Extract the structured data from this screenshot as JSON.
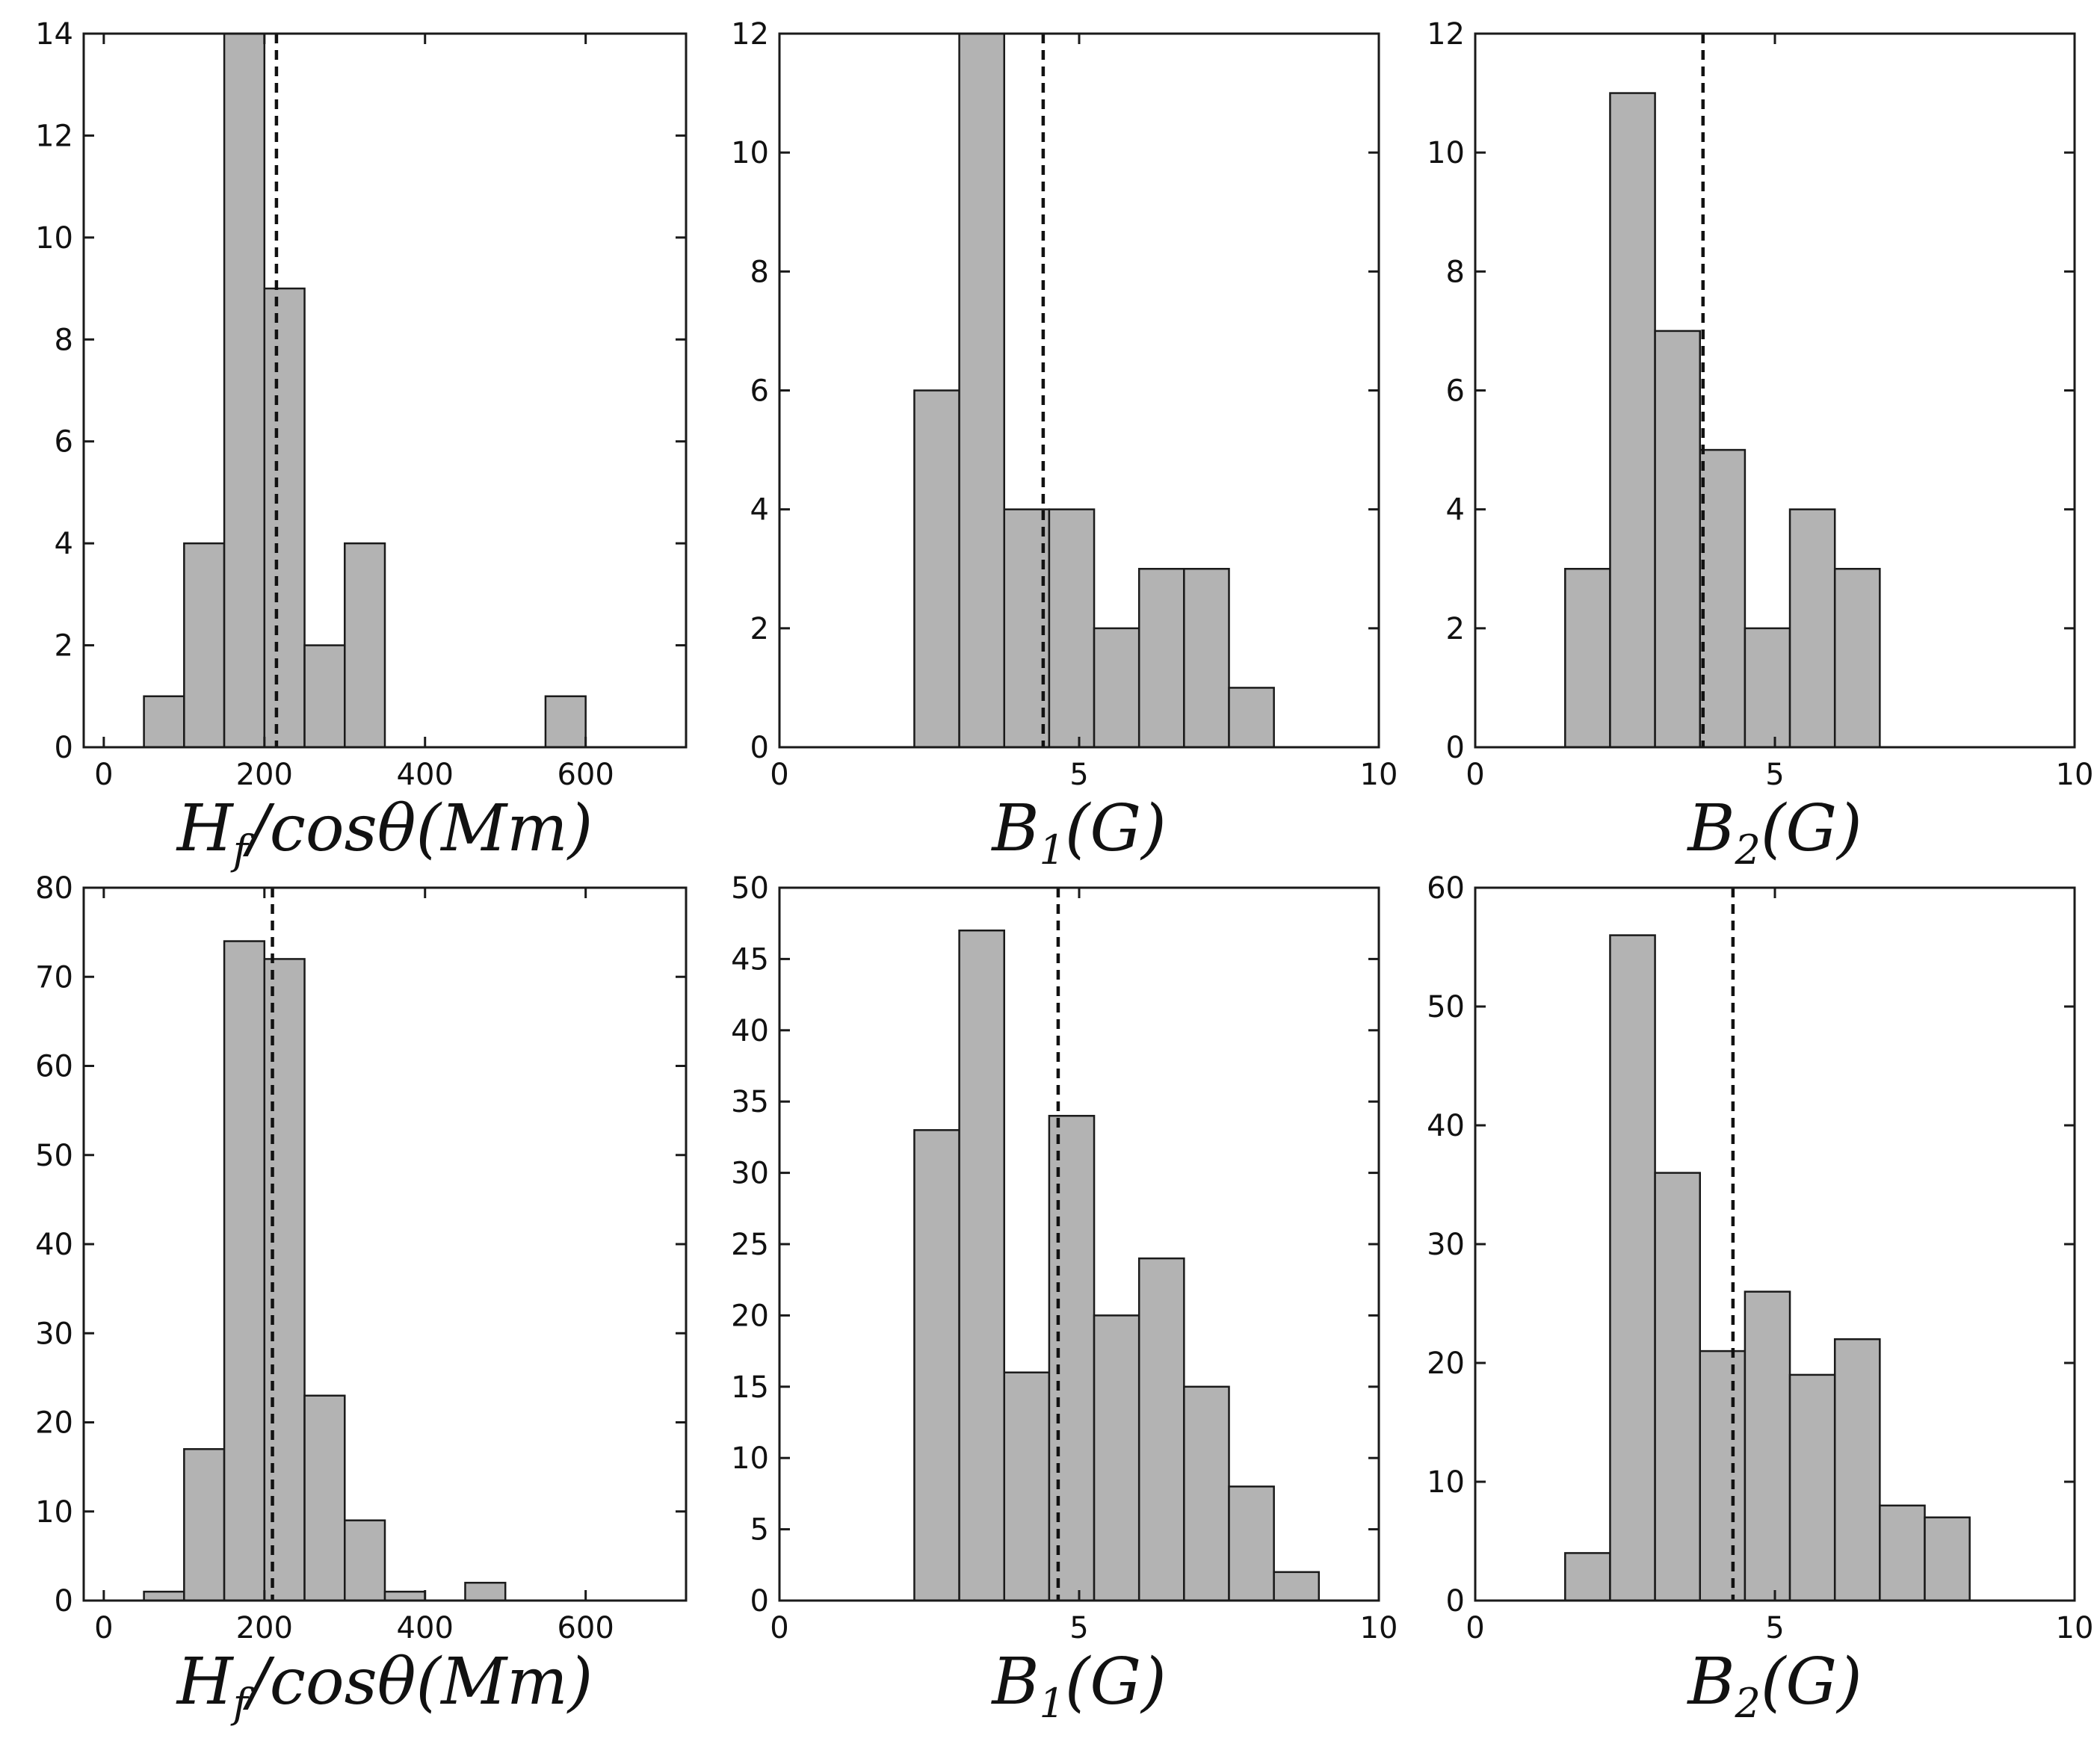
{
  "chart_data": [
    {
      "type": "bar",
      "xlabel": "H_f/cosθ(Mm)",
      "xlim": [
        -25,
        725
      ],
      "ylim": [
        0,
        14
      ],
      "xticks": [
        0,
        200,
        400,
        600
      ],
      "yticks": [
        0,
        2,
        4,
        6,
        8,
        10,
        12,
        14
      ],
      "bin_edges": [
        50,
        100,
        150,
        200,
        250,
        300,
        350,
        400,
        450,
        500,
        550,
        600
      ],
      "values": [
        1,
        4,
        14,
        9,
        2,
        4,
        0,
        0,
        0,
        0,
        1
      ],
      "mean_line": 215
    },
    {
      "type": "bar",
      "xlabel": "B_1(G)",
      "xlim": [
        0,
        10
      ],
      "ylim": [
        0,
        12
      ],
      "xticks": [
        0,
        5,
        10
      ],
      "yticks": [
        0,
        2,
        4,
        6,
        8,
        10,
        12
      ],
      "bin_edges": [
        2.25,
        3.0,
        3.75,
        4.5,
        5.25,
        6.0,
        6.75,
        7.5,
        8.25
      ],
      "values": [
        6,
        12,
        4,
        4,
        2,
        3,
        3,
        1
      ],
      "mean_line": 4.4
    },
    {
      "type": "bar",
      "xlabel": "B_2(G)",
      "xlim": [
        0,
        10
      ],
      "ylim": [
        0,
        12
      ],
      "xticks": [
        0,
        5,
        10
      ],
      "yticks": [
        0,
        2,
        4,
        6,
        8,
        10,
        12
      ],
      "bin_edges": [
        1.5,
        2.25,
        3.0,
        3.75,
        4.5,
        5.25,
        6.0,
        6.75
      ],
      "values": [
        3,
        11,
        7,
        5,
        2,
        4,
        3
      ],
      "mean_line": 3.8
    },
    {
      "type": "bar",
      "xlabel": "H_f/cosθ(Mm)",
      "xlim": [
        -25,
        725
      ],
      "ylim": [
        0,
        80
      ],
      "xticks": [
        0,
        200,
        400,
        600
      ],
      "yticks": [
        0,
        10,
        20,
        30,
        40,
        50,
        60,
        70,
        80
      ],
      "bin_edges": [
        50,
        100,
        150,
        200,
        250,
        300,
        350,
        400,
        450,
        500
      ],
      "values": [
        1,
        17,
        74,
        72,
        23,
        9,
        1,
        0,
        2
      ],
      "mean_line": 210
    },
    {
      "type": "bar",
      "xlabel": "B_1(G)",
      "xlim": [
        0,
        10
      ],
      "ylim": [
        0,
        50
      ],
      "xticks": [
        0,
        5,
        10
      ],
      "yticks": [
        0,
        5,
        10,
        15,
        20,
        25,
        30,
        35,
        40,
        45,
        50
      ],
      "bin_edges": [
        2.25,
        3.0,
        3.75,
        4.5,
        5.25,
        6.0,
        6.75,
        7.5,
        8.25,
        9.0
      ],
      "values": [
        33,
        47,
        16,
        34,
        20,
        24,
        15,
        8,
        2
      ],
      "mean_line": 4.65
    },
    {
      "type": "bar",
      "xlabel": "B_2(G)",
      "xlim": [
        0,
        10
      ],
      "ylim": [
        0,
        60
      ],
      "xticks": [
        0,
        5,
        10
      ],
      "yticks": [
        0,
        10,
        20,
        30,
        40,
        50,
        60
      ],
      "bin_edges": [
        1.5,
        2.25,
        3.0,
        3.75,
        4.5,
        5.25,
        6.0,
        6.75,
        7.5,
        8.25
      ],
      "values": [
        4,
        56,
        36,
        21,
        26,
        19,
        22,
        8,
        7
      ],
      "mean_line": 4.3
    }
  ]
}
